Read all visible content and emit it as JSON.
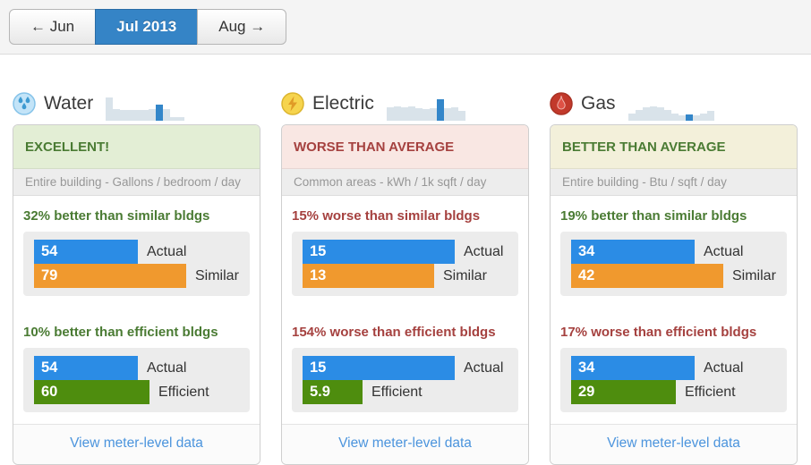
{
  "nav": {
    "prev_label": "← Jun",
    "current_label": "Jul 2013",
    "next_label": "Aug →"
  },
  "colors": {
    "bar_blue": "#2b8ce5",
    "bar_orange": "#f0992e",
    "bar_green": "#4e8d0e",
    "spark_bar": "#d9e3ea",
    "spark_highlight": "#3386c9",
    "nav_active_blue": "#3584c6",
    "good_text": "#4a7b33",
    "bad_text": "#a5413f",
    "link_blue": "#4b94dd"
  },
  "panels": [
    {
      "title": "Water",
      "icon": "water-drops-icon",
      "status": "EXCELLENT!",
      "status_bg": "#e3eed5",
      "status_color": "#4a7b33",
      "subtitle": "Entire building - Gallons / bedroom / day",
      "sparkline": {
        "heights": [
          26,
          13,
          12,
          12,
          12,
          12,
          13,
          18,
          13,
          4,
          4
        ],
        "highlight_index": 7
      },
      "comparisons": [
        {
          "heading": "32% better than similar bldgs",
          "tone": "good",
          "rows": [
            {
              "label": "Actual",
              "value": "54",
              "color": "blue"
            },
            {
              "label": "Similar",
              "value": "79",
              "color": "orange"
            }
          ]
        },
        {
          "heading": "10% better than efficient bldgs",
          "tone": "good",
          "rows": [
            {
              "label": "Actual",
              "value": "54",
              "color": "blue"
            },
            {
              "label": "Efficient",
              "value": "60",
              "color": "green"
            }
          ]
        }
      ],
      "link": "View meter-level data"
    },
    {
      "title": "Electric",
      "icon": "lightning-bolt-icon",
      "status": "WORSE THAN AVERAGE",
      "status_bg": "#f9e7e3",
      "status_color": "#a5413f",
      "subtitle": "Common areas - kWh / 1k sqft / day",
      "sparkline": {
        "heights": [
          15,
          16,
          15,
          16,
          14,
          13,
          14,
          24,
          14,
          15,
          11
        ],
        "highlight_index": 7
      },
      "comparisons": [
        {
          "heading": "15% worse than similar bldgs",
          "tone": "bad",
          "rows": [
            {
              "label": "Actual",
              "value": "15",
              "color": "blue"
            },
            {
              "label": "Similar",
              "value": "13",
              "color": "orange"
            }
          ]
        },
        {
          "heading": "154% worse than efficient bldgs",
          "tone": "bad",
          "rows": [
            {
              "label": "Actual",
              "value": "15",
              "color": "blue"
            },
            {
              "label": "Efficient",
              "value": "5.9",
              "color": "green"
            }
          ]
        }
      ],
      "link": "View meter-level data"
    },
    {
      "title": "Gas",
      "icon": "flame-icon",
      "status": "BETTER THAN AVERAGE",
      "status_bg": "#f3f0da",
      "status_color": "#4a7b33",
      "subtitle": "Entire building - Btu / sqft / day",
      "sparkline": {
        "heights": [
          8,
          12,
          15,
          16,
          15,
          12,
          8,
          6,
          7,
          6,
          8,
          11
        ],
        "highlight_index": 8
      },
      "comparisons": [
        {
          "heading": "19% better than similar bldgs",
          "tone": "good",
          "rows": [
            {
              "label": "Actual",
              "value": "34",
              "color": "blue"
            },
            {
              "label": "Similar",
              "value": "42",
              "color": "orange"
            }
          ]
        },
        {
          "heading": "17% worse than efficient bldgs",
          "tone": "bad",
          "rows": [
            {
              "label": "Actual",
              "value": "34",
              "color": "blue"
            },
            {
              "label": "Efficient",
              "value": "29",
              "color": "green"
            }
          ]
        }
      ],
      "link": "View meter-level data"
    }
  ]
}
